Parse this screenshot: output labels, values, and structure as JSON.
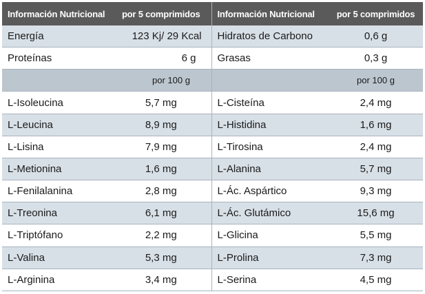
{
  "header": {
    "col1": "Información Nutricional",
    "col2": "por 5 comprimidos",
    "col3": "Información Nutricional",
    "col4": "por 5 comprimidos"
  },
  "summary_rows": [
    {
      "name_l": "Energía",
      "val_l": "123 Kj/ 29 Kcal",
      "name_r": "Hidratos de Carbono",
      "val_r": "0,6 g"
    },
    {
      "name_l": "Proteínas",
      "val_l": "6 g",
      "name_r": "Grasas",
      "val_r": "0,3 g"
    }
  ],
  "subheader": {
    "left": "por 100 g",
    "right": "por 100 g"
  },
  "amino_rows": [
    {
      "name_l": "L-Isoleucina",
      "val_l": "5,7 mg",
      "name_r": "L-Cisteína",
      "val_r": "2,4 mg"
    },
    {
      "name_l": "L-Leucina",
      "val_l": "8,9 mg",
      "name_r": "L-Histidina",
      "val_r": "1,6 mg"
    },
    {
      "name_l": "L-Lisina",
      "val_l": "7,9 mg",
      "name_r": "L-Tirosina",
      "val_r": "2,4 mg"
    },
    {
      "name_l": "L-Metionina",
      "val_l": "1,6 mg",
      "name_r": "L-Alanina",
      "val_r": "5,7 mg"
    },
    {
      "name_l": "L-Fenilalanina",
      "val_l": "2,8 mg",
      "name_r": "L-Ác. Aspártico",
      "val_r": "9,3 mg"
    },
    {
      "name_l": "L-Treonina",
      "val_l": "6,1 mg",
      "name_r": "L-Ác. Glutámico",
      "val_r": "15,6 mg"
    },
    {
      "name_l": "L-Triptófano",
      "val_l": "2,2 mg",
      "name_r": "L-Glicina",
      "val_r": "5,5 mg"
    },
    {
      "name_l": "L-Valina",
      "val_l": "5,3 mg",
      "name_r": "L-Prolina",
      "val_r": "7,3 mg"
    },
    {
      "name_l": "L-Arginina",
      "val_l": "3,4 mg",
      "name_r": "L-Serina",
      "val_r": "4,5 mg"
    }
  ],
  "colors": {
    "header_bg": "#5a5a5a",
    "row_tint": "#d8e0e7",
    "subheader_bg": "#bcc6cf"
  }
}
